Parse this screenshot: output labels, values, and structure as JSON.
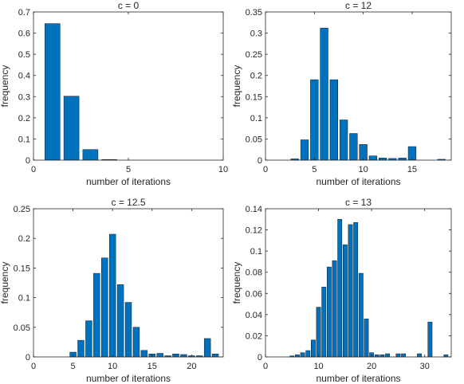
{
  "chart_data": [
    {
      "type": "bar",
      "title": "c = 0",
      "xlabel": "number of iterations",
      "ylabel": "frequency",
      "xlim": [
        0,
        10
      ],
      "ylim": [
        0,
        0.7
      ],
      "xticks": [
        "0",
        "5",
        "10"
      ],
      "yticks": [
        "0",
        "0.1",
        "0.2",
        "0.3",
        "0.4",
        "0.5",
        "0.6",
        "0.7"
      ],
      "bar_color": "#0072bd",
      "x": [
        1,
        2,
        3,
        4
      ],
      "values": [
        0.645,
        0.302,
        0.05,
        0.003
      ]
    },
    {
      "type": "bar",
      "title": "c = 12",
      "xlabel": "number of iterations",
      "ylabel": "frequency",
      "xlim": [
        0,
        19
      ],
      "ylim": [
        0,
        0.35
      ],
      "xticks": [
        "0",
        "5",
        "10",
        "15"
      ],
      "yticks": [
        "0",
        "0.05",
        "0.1",
        "0.15",
        "0.2",
        "0.25",
        "0.3",
        "0.35"
      ],
      "bar_color": "#0072bd",
      "x": [
        3,
        4,
        5,
        6,
        7,
        8,
        9,
        10,
        11,
        12,
        13,
        14,
        15,
        16,
        17,
        18
      ],
      "values": [
        0.003,
        0.048,
        0.19,
        0.312,
        0.19,
        0.095,
        0.063,
        0.037,
        0.01,
        0.005,
        0.004,
        0.005,
        0.032,
        0.0,
        0.0,
        0.002
      ]
    },
    {
      "type": "bar",
      "title": "c = 12.5",
      "xlabel": "number of iterations",
      "ylabel": "frequency",
      "xlim": [
        0,
        24
      ],
      "ylim": [
        0,
        0.25
      ],
      "xticks": [
        "0",
        "5",
        "10",
        "15",
        "20"
      ],
      "yticks": [
        "0",
        "0.05",
        "0.1",
        "0.15",
        "0.2",
        "0.25"
      ],
      "bar_color": "#0072bd",
      "x": [
        5,
        6,
        7,
        8,
        9,
        10,
        11,
        12,
        13,
        14,
        15,
        16,
        17,
        18,
        19,
        20,
        21,
        22,
        23
      ],
      "values": [
        0.008,
        0.028,
        0.061,
        0.141,
        0.167,
        0.207,
        0.122,
        0.092,
        0.05,
        0.011,
        0.005,
        0.006,
        0.002,
        0.005,
        0.004,
        0.002,
        0.002,
        0.031,
        0.005
      ]
    },
    {
      "type": "bar",
      "title": "c = 13",
      "xlabel": "number of iterations",
      "ylabel": "frequency",
      "xlim": [
        0,
        35
      ],
      "ylim": [
        0,
        0.14
      ],
      "xticks": [
        "0",
        "10",
        "20",
        "30"
      ],
      "yticks": [
        "0",
        "0.02",
        "0.04",
        "0.06",
        "0.08",
        "0.1",
        "0.12",
        "0.14"
      ],
      "bar_color": "#0072bd",
      "x": [
        1,
        2,
        3,
        4,
        5,
        6,
        7,
        8,
        9,
        10,
        11,
        12,
        13,
        14,
        15,
        16,
        17,
        18,
        19,
        20,
        21,
        22,
        23,
        24,
        25,
        26,
        27,
        28,
        29,
        30,
        31,
        32,
        33,
        34
      ],
      "values": [
        0.0,
        0.0,
        0.0,
        0.0,
        0.001,
        0.002,
        0.004,
        0.006,
        0.016,
        0.047,
        0.066,
        0.085,
        0.091,
        0.13,
        0.106,
        0.125,
        0.127,
        0.079,
        0.036,
        0.004,
        0.002,
        0.002,
        0.003,
        0.0,
        0.003,
        0.003,
        0.0,
        0.0,
        0.003,
        0.0,
        0.033,
        0.0,
        0.0,
        0.002
      ]
    }
  ]
}
